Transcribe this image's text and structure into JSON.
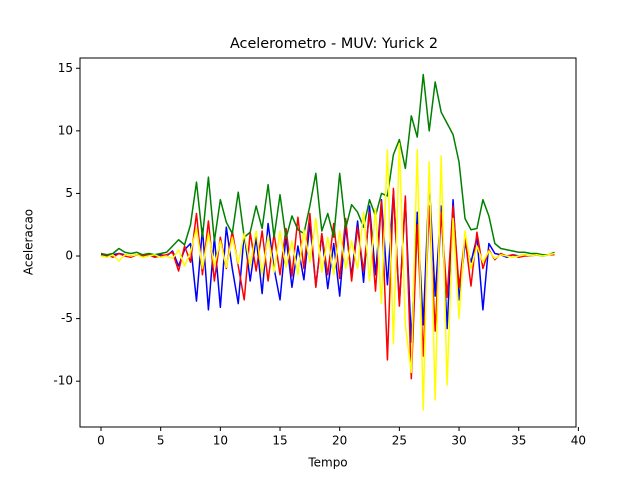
{
  "chart_data": {
    "type": "line",
    "title": "Acelerometro - MUV: Yurick 2",
    "x_label": "Tempo",
    "y_label": "Aceleracao",
    "xlim": [
      -1.76,
      39.8
    ],
    "ylim": [
      -13.66,
      15.82
    ],
    "xticks": [
      0,
      5,
      10,
      15,
      20,
      25,
      30,
      35,
      40
    ],
    "yticks": [
      -10,
      -5,
      0,
      5,
      10,
      15
    ],
    "grid": false,
    "x": [
      0,
      0.5,
      1,
      1.5,
      2,
      2.5,
      3,
      3.5,
      4,
      4.5,
      5,
      5.5,
      6,
      6.5,
      7,
      7.5,
      8,
      8.5,
      9,
      9.5,
      10,
      10.5,
      11,
      11.5,
      12,
      12.5,
      13,
      13.5,
      14,
      14.5,
      15,
      15.5,
      16,
      16.5,
      17,
      17.5,
      18,
      18.5,
      19,
      19.5,
      20,
      20.5,
      21,
      21.5,
      22,
      22.5,
      23,
      23.5,
      24,
      24.5,
      25,
      25.5,
      26,
      26.5,
      27,
      27.5,
      28,
      28.5,
      29,
      29.5,
      30,
      30.5,
      31,
      31.5,
      32,
      32.5,
      33,
      33.5,
      34,
      34.5,
      35,
      35.5,
      36,
      36.5,
      37,
      37.5,
      38
    ],
    "series": [
      {
        "color": "#0000ff",
        "values": [
          0.1,
          0,
          0.1,
          0.2,
          0.1,
          0,
          0.1,
          0,
          0.1,
          0,
          0.1,
          0,
          0.4,
          -0.8,
          0.5,
          1.0,
          -3.6,
          2.2,
          -4.3,
          1.5,
          -4.1,
          2.3,
          -1.0,
          -3.8,
          1.8,
          -2.0,
          1.5,
          -3.0,
          2.6,
          -1.0,
          -3.5,
          1.6,
          -2.5,
          0.8,
          -1.9,
          2.6,
          -2.4,
          1.7,
          -2.6,
          1.0,
          -3.2,
          2.4,
          -1.6,
          2.8,
          -2.1,
          4.0,
          -1.5,
          4.5,
          -2.3,
          5.2,
          -3.8,
          4.5,
          -6.9,
          3.5,
          -5.5,
          6.0,
          -3.2,
          4.0,
          -5.8,
          4.5,
          -3.5,
          1.0,
          -0.5,
          1.5,
          -4.3,
          1.0,
          0.2,
          0.1,
          -0.1,
          0.1,
          0,
          0.1,
          0,
          0.1,
          0,
          0.1,
          0.2
        ]
      },
      {
        "color": "#ff0000",
        "values": [
          0,
          0.1,
          -0.1,
          0.2,
          0,
          -0.1,
          0.1,
          0,
          0.1,
          -0.1,
          0,
          0.1,
          0.3,
          -1.2,
          0.8,
          -0.5,
          3.4,
          -1.5,
          2.8,
          -2.0,
          1.5,
          -1.0,
          2.0,
          -0.8,
          -3.5,
          1.9,
          -1.2,
          2.0,
          -2.0,
          1.8,
          -1.5,
          2.2,
          -1.6,
          3.1,
          -1.0,
          3.4,
          -2.5,
          1.8,
          -1.5,
          2.6,
          -1.8,
          3.0,
          -2.0,
          2.3,
          -1.2,
          3.5,
          -2.8,
          4.4,
          -8.3,
          5.4,
          -4.0,
          4.8,
          -9.8,
          2.5,
          -8.0,
          4.0,
          -6.0,
          3.5,
          -3.3,
          4.0,
          -2.5,
          1.5,
          -2.4,
          1.9,
          -1.0,
          0.5,
          -0.3,
          0.2,
          0,
          0.1,
          -0.1,
          0,
          0,
          0.1,
          0,
          0.1,
          0.1
        ]
      },
      {
        "color": "#008000",
        "values": [
          0.2,
          0.1,
          0.2,
          0.6,
          0.3,
          0.2,
          0.3,
          0.1,
          0.2,
          0.1,
          0.2,
          0.3,
          0.8,
          1.3,
          0.9,
          2.5,
          5.9,
          1.5,
          6.3,
          1.2,
          4.5,
          2.7,
          1.8,
          5.1,
          1.5,
          1.9,
          4.0,
          2.2,
          5.7,
          1.5,
          4.9,
          1.4,
          3.2,
          2.1,
          1.8,
          4.0,
          6.6,
          2.0,
          3.4,
          1.5,
          6.6,
          2.2,
          4.1,
          3.5,
          2.3,
          4.5,
          3.2,
          5.0,
          4.8,
          8.1,
          9.3,
          7.0,
          11.2,
          9.5,
          14.5,
          10.0,
          13.9,
          11.5,
          10.6,
          9.7,
          7.5,
          3.0,
          2.1,
          2.2,
          4.5,
          3.2,
          1.0,
          0.6,
          0.5,
          0.4,
          0.3,
          0.3,
          0.2,
          0.2,
          0.1,
          0.1,
          0.3
        ]
      },
      {
        "color": "#ffff00",
        "values": [
          0,
          -0.1,
          0.1,
          -0.4,
          0.1,
          0,
          0.1,
          -0.1,
          0,
          0.1,
          -0.1,
          0,
          -0.2,
          0.5,
          -0.8,
          0.3,
          2.2,
          -1.0,
          1.8,
          -0.8,
          1.2,
          -0.9,
          1.5,
          -0.6,
          1.8,
          -0.8,
          2.0,
          -1.5,
          1.6,
          -1.3,
          2.0,
          -0.9,
          1.2,
          -1.5,
          2.1,
          -0.5,
          3.0,
          -1.3,
          1.5,
          -1.5,
          2.0,
          -1.0,
          1.2,
          -1.0,
          3.5,
          -2.0,
          3.8,
          -3.8,
          8.5,
          -7.0,
          9.0,
          -5.5,
          -9.3,
          8.5,
          -12.3,
          7.5,
          -11.5,
          8.0,
          -10.3,
          3.0,
          -5.0,
          2.0,
          -1.0,
          0.8,
          -0.5,
          0.4,
          -0.2,
          0.1,
          0,
          -0.1,
          0,
          0.1,
          0,
          0.1,
          0,
          0.1,
          0.2
        ]
      }
    ]
  }
}
